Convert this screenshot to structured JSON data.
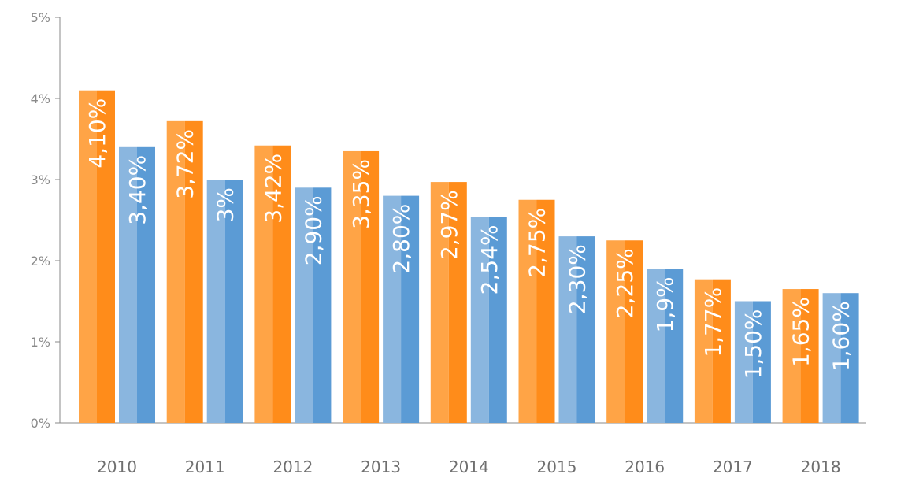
{
  "chart_data": {
    "type": "bar",
    "categories": [
      "2010",
      "2011",
      "2012",
      "2013",
      "2014",
      "2015",
      "2016",
      "2017",
      "2018"
    ],
    "series": [
      {
        "values": [
          4.1,
          3.72,
          3.42,
          3.35,
          2.97,
          2.75,
          2.25,
          1.77,
          1.65
        ],
        "labels": [
          "4,10%",
          "3,72%",
          "3,42%",
          "3,35%",
          "2,97%",
          "2,75%",
          "2,25%",
          "1,77%",
          "1,65%"
        ],
        "color": "#ff8c1a",
        "color_light": "#ffa446"
      },
      {
        "values": [
          3.4,
          3.0,
          2.9,
          2.8,
          2.54,
          2.3,
          1.9,
          1.5,
          1.6
        ],
        "labels": [
          "3,40%",
          "3%",
          "2,90%",
          "2,80%",
          "2,54%",
          "2,30%",
          "1,9%",
          "1,50%",
          "1,60%"
        ],
        "color": "#5b9bd5",
        "color_light": "#8ab6df"
      }
    ],
    "ylim": [
      0,
      5
    ],
    "y_ticks": [
      0,
      1,
      2,
      3,
      4,
      5
    ],
    "y_tick_labels": [
      "0%",
      "1%",
      "2%",
      "3%",
      "4%",
      "5%"
    ],
    "title": "",
    "xlabel": "",
    "ylabel": "",
    "grid": false,
    "legend": "none"
  }
}
